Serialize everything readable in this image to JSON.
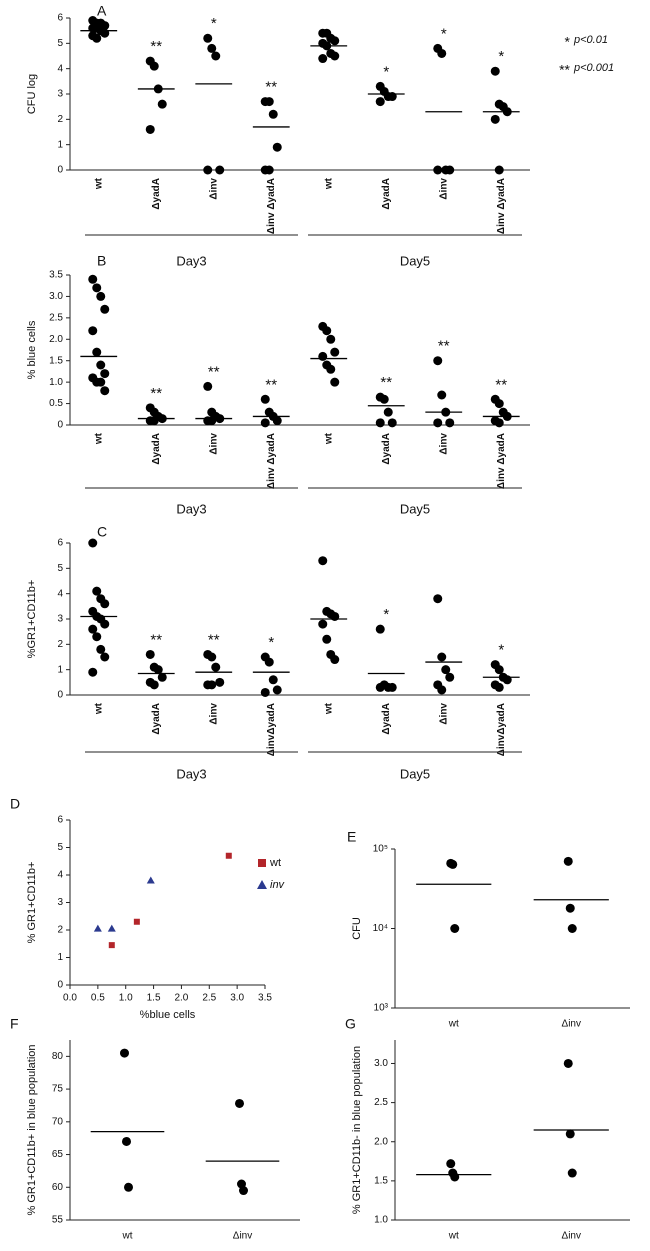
{
  "chart_data": [
    {
      "type": "dot",
      "label": "A",
      "ylabel": "CFU log",
      "ylim": [
        0,
        6
      ],
      "yticks": [
        0,
        1,
        2,
        3,
        4,
        5,
        6
      ],
      "categories": [
        "wt",
        "ΔyadA",
        "Δinv",
        "Δinv ΔyadA",
        "wt",
        "ΔyadA",
        "Δinv",
        "Δinv ΔyadA"
      ],
      "groups": [
        {
          "label": "Day3"
        },
        {
          "label": "Day5"
        }
      ],
      "points": [
        [
          5.9,
          5.8,
          5.8,
          5.7,
          5.6,
          5.6,
          5.5,
          5.4,
          5.3,
          5.2,
          5.5
        ],
        [
          4.3,
          4.1,
          3.2,
          2.6,
          1.6
        ],
        [
          5.2,
          4.8,
          4.5,
          0,
          0
        ],
        [
          2.7,
          2.7,
          2.2,
          0.9,
          0,
          0
        ],
        [
          5.4,
          5.4,
          5.2,
          5.1,
          5.0,
          4.9,
          4.6,
          4.5,
          4.4
        ],
        [
          3.3,
          3.1,
          2.9,
          2.9,
          2.7
        ],
        [
          4.8,
          4.6,
          0,
          0,
          0
        ],
        [
          3.9,
          2.6,
          2.5,
          2.3,
          2.0,
          0
        ]
      ],
      "means": [
        5.5,
        3.2,
        3.4,
        1.7,
        4.9,
        3.0,
        2.3,
        2.3
      ],
      "annotations": [
        null,
        "**",
        "*",
        "**",
        null,
        "*",
        "*",
        "*"
      ],
      "legend": [
        {
          "symbol": "*",
          "label": "p<0.01"
        },
        {
          "symbol": "**",
          "label": "p<0.001"
        }
      ]
    },
    {
      "type": "dot",
      "label": "B",
      "ylabel": "% blue cells",
      "ylim": [
        0,
        3.5
      ],
      "yticks": [
        0,
        0.5,
        {
          "value": 1,
          "label": "1.0"
        },
        1.5,
        {
          "value": 2,
          "label": "2.0"
        },
        2.5,
        {
          "value": 3,
          "label": "3.0"
        },
        3.5
      ],
      "categories": [
        "wt",
        "ΔyadA",
        "Δinv",
        "Δinv ΔyadA",
        "wt",
        "ΔyadA",
        "Δinv",
        "Δinv ΔyadA"
      ],
      "groups": [
        {
          "label": "Day3"
        },
        {
          "label": "Day5"
        }
      ],
      "points": [
        [
          3.4,
          3.2,
          3.0,
          2.7,
          2.2,
          1.7,
          1.4,
          1.2,
          1.1,
          1.0,
          1.0,
          0.8
        ],
        [
          0.4,
          0.3,
          0.2,
          0.15,
          0.1,
          0.1
        ],
        [
          0.9,
          0.3,
          0.2,
          0.15,
          0.1,
          0.1
        ],
        [
          0.6,
          0.3,
          0.2,
          0.1,
          0.05
        ],
        [
          2.3,
          2.2,
          2.0,
          1.7,
          1.6,
          1.4,
          1.3,
          1.0
        ],
        [
          0.65,
          0.6,
          0.3,
          0.05,
          0.05
        ],
        [
          1.5,
          0.7,
          0.3,
          0.05,
          0.05
        ],
        [
          0.6,
          0.5,
          0.3,
          0.2,
          0.1,
          0.05
        ]
      ],
      "means": [
        1.6,
        0.15,
        0.15,
        0.2,
        1.55,
        0.45,
        0.3,
        0.2
      ],
      "annotations": [
        null,
        "**",
        "**",
        "**",
        null,
        "**",
        "**",
        "**"
      ]
    },
    {
      "type": "dot",
      "label": "C",
      "ylabel": "%GR1+CD11b+",
      "ylim": [
        0,
        6
      ],
      "yticks": [
        0,
        1,
        2,
        3,
        4,
        5,
        6
      ],
      "categories": [
        "wt",
        "ΔyadA",
        "Δinv",
        "ΔinvΔyadA",
        "wt",
        "ΔyadA",
        "Δinv",
        "ΔinvΔyadA"
      ],
      "groups": [
        {
          "label": "Day3"
        },
        {
          "label": "Day5"
        }
      ],
      "points": [
        [
          6.0,
          4.1,
          3.8,
          3.6,
          3.3,
          3.1,
          3.0,
          2.8,
          2.6,
          2.3,
          1.8,
          1.5,
          0.9
        ],
        [
          1.6,
          1.1,
          1.0,
          0.7,
          0.5,
          0.4
        ],
        [
          1.6,
          1.5,
          1.1,
          0.5,
          0.4,
          0.4
        ],
        [
          1.5,
          1.3,
          0.6,
          0.2,
          0.1
        ],
        [
          5.3,
          3.3,
          3.2,
          3.1,
          2.8,
          2.2,
          1.6,
          1.4
        ],
        [
          2.6,
          0.4,
          0.3,
          0.3,
          0.3
        ],
        [
          3.8,
          1.5,
          1.0,
          0.7,
          0.4,
          0.2
        ],
        [
          1.2,
          1.0,
          0.7,
          0.6,
          0.4,
          0.3
        ]
      ],
      "means": [
        3.1,
        0.85,
        0.9,
        0.9,
        3.0,
        0.85,
        1.3,
        0.7
      ],
      "annotations": [
        null,
        "**",
        "**",
        "*",
        null,
        "*",
        null,
        "*"
      ]
    },
    {
      "type": "scatter",
      "label": "D",
      "xlabel": "%blue cells",
      "ylabel": "% GR1+CD11b+",
      "xlim": [
        0,
        3.5
      ],
      "xticks": [
        {
          "value": 0,
          "label": "0.0"
        },
        0.5,
        {
          "value": 1,
          "label": "1.0"
        },
        1.5,
        {
          "value": 2,
          "label": "2.0"
        },
        2.5,
        {
          "value": 3,
          "label": "3.0"
        },
        3.5
      ],
      "ylim": [
        0,
        6
      ],
      "yticks": [
        0,
        1,
        2,
        3,
        4,
        5,
        6
      ],
      "series": [
        {
          "name": "wt",
          "color": "#b3252a",
          "marker": "square",
          "x": [
            0.75,
            1.2,
            2.85
          ],
          "y": [
            1.45,
            2.3,
            4.7
          ]
        },
        {
          "name": "inv",
          "color": "#2b3a8f",
          "marker": "triangle",
          "x": [
            0.5,
            0.75,
            1.45
          ],
          "y": [
            2.05,
            2.05,
            3.8
          ]
        }
      ]
    },
    {
      "type": "dot",
      "label": "E",
      "ylabel": "CFU",
      "log": true,
      "ylim": [
        1000,
        100000
      ],
      "yticks": [
        {
          "value": 1000,
          "label": "10³"
        },
        {
          "value": 10000,
          "label": "10⁴"
        },
        {
          "value": 100000,
          "label": "10⁵"
        }
      ],
      "categories": [
        "wt",
        "Δinv"
      ],
      "points": [
        [
          66000,
          64000,
          10000
        ],
        [
          70000,
          18000,
          10000
        ]
      ],
      "means": [
        36000,
        23000
      ]
    },
    {
      "type": "dot",
      "label": "F",
      "ylabel": "% GR1+CD11b+ in blue population",
      "ylim": [
        55,
        82.5
      ],
      "yticks": [
        55,
        60,
        65,
        70,
        75,
        80
      ],
      "categories": [
        "wt",
        "Δinv"
      ],
      "points": [
        [
          80.5,
          67,
          60
        ],
        [
          72.8,
          60.5,
          59.5
        ]
      ],
      "means": [
        68.5,
        64
      ]
    },
    {
      "type": "dot",
      "label": "G",
      "ylabel": "% GR1+CD11b- in blue population",
      "ylim": [
        1,
        3.3
      ],
      "yticks": [
        {
          "value": 1,
          "label": "1.0"
        },
        1.5,
        {
          "value": 2,
          "label": "2.0"
        },
        2.5,
        {
          "value": 3,
          "label": "3.0"
        }
      ],
      "categories": [
        "wt",
        "Δinv"
      ],
      "points": [
        [
          1.72,
          1.6,
          1.55
        ],
        [
          3.0,
          2.1,
          1.6
        ]
      ],
      "means": [
        1.58,
        2.15
      ]
    }
  ]
}
